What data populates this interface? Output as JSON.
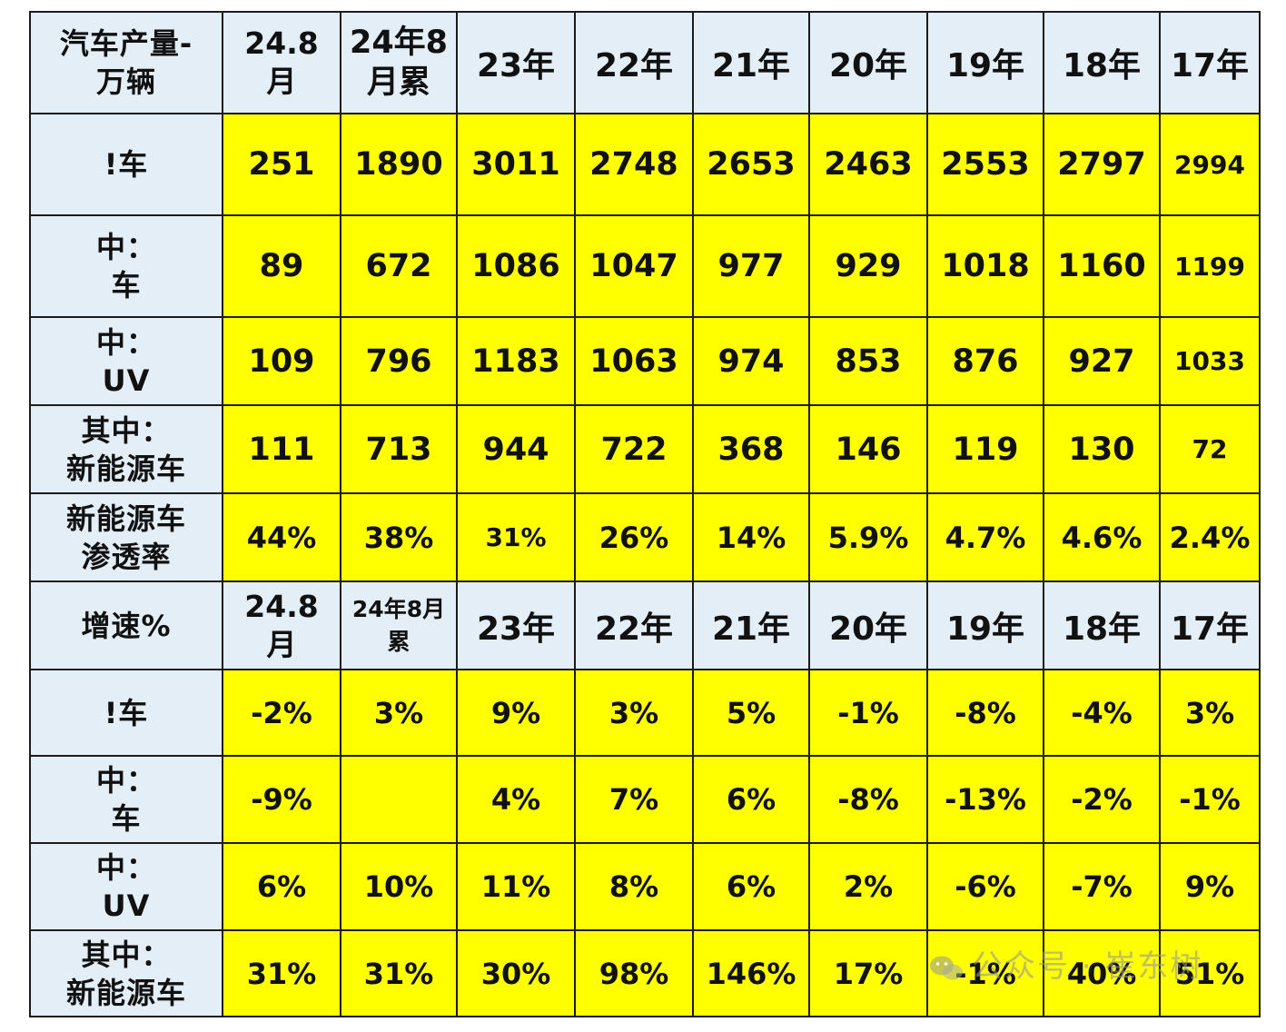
{
  "chart_data": {
    "type": "table",
    "production": {
      "header": {
        "label_line1": "汽车产量-",
        "label_line2": "万辆",
        "period_line1": "24.8",
        "period_line2": "月",
        "cumulative_line1": "24年8",
        "cumulative_line2": "月累",
        "years": [
          "23年",
          "22年",
          "21年",
          "20年",
          "19年",
          "18年",
          "17年"
        ]
      },
      "rows": [
        {
          "label_line1": "!车",
          "label_line2": "",
          "month": "251",
          "ytd": "1890",
          "values": [
            "3011",
            "2748",
            "2653",
            "2463",
            "2553",
            "2797",
            "2994"
          ]
        },
        {
          "label_line1": "中：",
          "label_line2": "车",
          "month": "89",
          "ytd": "672",
          "values": [
            "1086",
            "1047",
            "977",
            "929",
            "1018",
            "1160",
            "1199"
          ]
        },
        {
          "label_line1": "中：",
          "label_line2": "UV",
          "month": "109",
          "ytd": "796",
          "values": [
            "1183",
            "1063",
            "974",
            "853",
            "876",
            "927",
            "1033"
          ]
        },
        {
          "label_line1": "其中：",
          "label_line2": "新能源车",
          "month": "111",
          "ytd": "713",
          "values": [
            "944",
            "722",
            "368",
            "146",
            "119",
            "130",
            "72"
          ]
        },
        {
          "label_line1": "新能源车",
          "label_line2": "渗透率",
          "month": "44%",
          "ytd": "38%",
          "values": [
            "31%",
            "26%",
            "14%",
            "5.9%",
            "4.7%",
            "4.6%",
            "2.4%"
          ]
        }
      ]
    },
    "growth": {
      "header": {
        "label": "增速%",
        "period_line1": "24.8",
        "period_line2": "月",
        "cumulative_line1": "24年8月",
        "cumulative_line2": "累",
        "years": [
          "23年",
          "22年",
          "21年",
          "20年",
          "19年",
          "18年",
          "17年"
        ]
      },
      "rows": [
        {
          "label_line1": "!车",
          "label_line2": "",
          "month": "-2%",
          "ytd": "3%",
          "values": [
            "9%",
            "3%",
            "5%",
            "-1%",
            "-8%",
            "-4%",
            "3%"
          ]
        },
        {
          "label_line1": "中：",
          "label_line2": "车",
          "month": "-9%",
          "ytd": "",
          "values": [
            "4%",
            "7%",
            "6%",
            "-8%",
            "-13%",
            "-2%",
            "-1%"
          ]
        },
        {
          "label_line1": "中：",
          "label_line2": "UV",
          "month": "6%",
          "ytd": "10%",
          "values": [
            "11%",
            "8%",
            "6%",
            "2%",
            "-6%",
            "-7%",
            "9%"
          ]
        },
        {
          "label_line1": "其中：",
          "label_line2": "新能源车",
          "month": "31%",
          "ytd": "31%",
          "values": [
            "30%",
            "98%",
            "146%",
            "17%",
            "-1%",
            "40%",
            "51%"
          ]
        }
      ]
    }
  },
  "watermark": {
    "text": "公众号 · 崔东树",
    "icon": "wechat-icon"
  }
}
